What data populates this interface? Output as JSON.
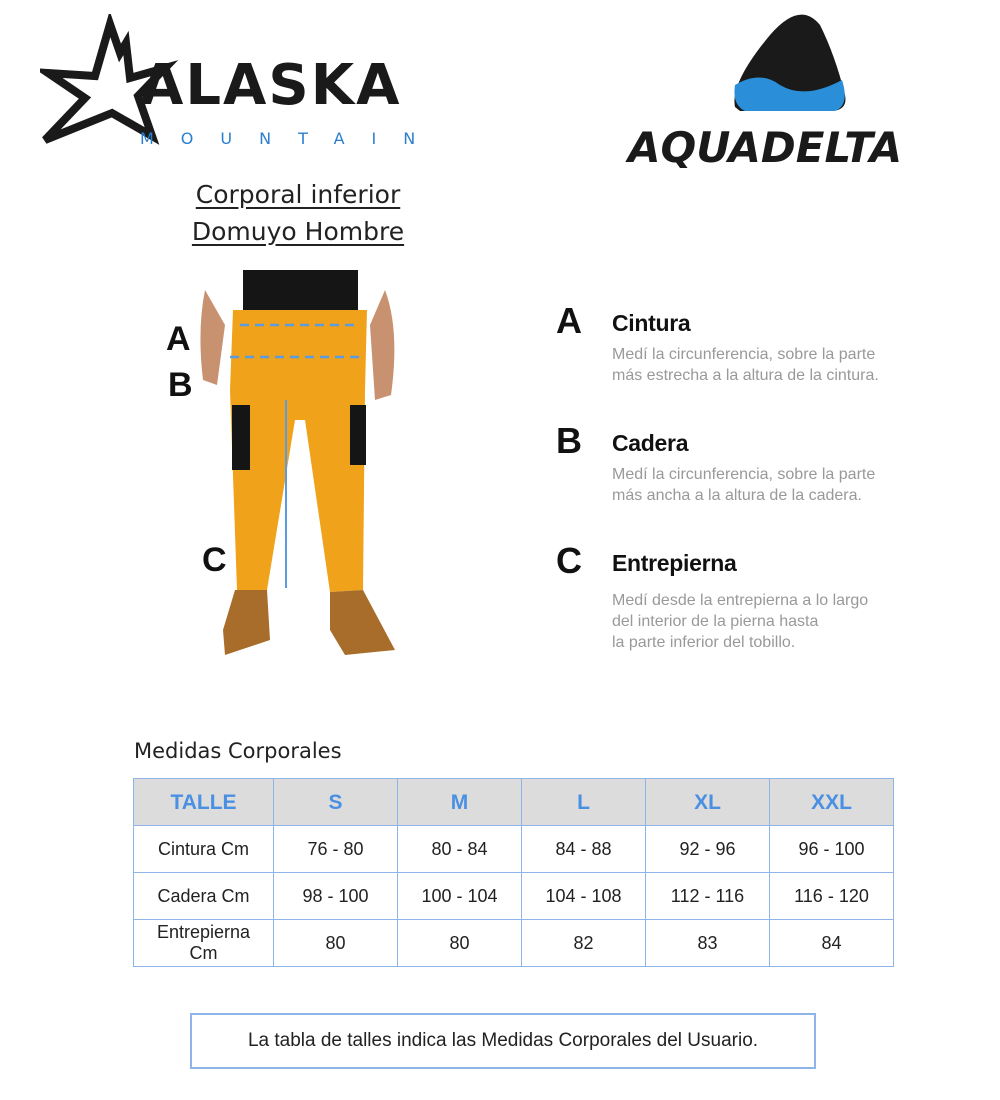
{
  "logos": {
    "left": {
      "brand": "ALASKA",
      "sub": "MOUNTAIN"
    },
    "right": {
      "brand": "AQUADELTA"
    }
  },
  "colors": {
    "accent": "#4a90e2",
    "border": "#8fb4e8",
    "header_bg": "#dcdcdc",
    "pants": "#f0a21a"
  },
  "heading": {
    "line1": "Corporal inferior",
    "line2": "Domuyo Hombre"
  },
  "figure_labels": [
    "A",
    "B",
    "C"
  ],
  "measures": [
    {
      "letter": "A",
      "title": "Cintura",
      "desc": [
        "Medí la circunferencia, sobre la parte",
        "más estrecha a la altura de la cintura."
      ]
    },
    {
      "letter": "B",
      "title": "Cadera",
      "desc": [
        "Medí la circunferencia, sobre la parte",
        "más ancha a la altura de la cadera."
      ]
    },
    {
      "letter": "C",
      "title": "Entrepierna",
      "desc": [
        "Medí desde la entrepierna a lo largo",
        "del interior de la pierna hasta",
        "la parte inferior del tobillo."
      ]
    }
  ],
  "table": {
    "title": "Medidas Corporales",
    "headers": [
      "TALLE",
      "S",
      "M",
      "L",
      "XL",
      "XXL"
    ],
    "rows": [
      [
        "Cintura Cm",
        "76 - 80",
        "80 - 84",
        "84 - 88",
        "92 - 96",
        "96 - 100"
      ],
      [
        "Cadera Cm",
        "98 - 100",
        "100 - 104",
        "104 - 108",
        "112 - 116",
        "116 - 120"
      ],
      [
        "Entrepierna Cm",
        "80",
        "80",
        "82",
        "83",
        "84"
      ]
    ]
  },
  "note": "La tabla de talles indica las Medidas Corporales del Usuario."
}
